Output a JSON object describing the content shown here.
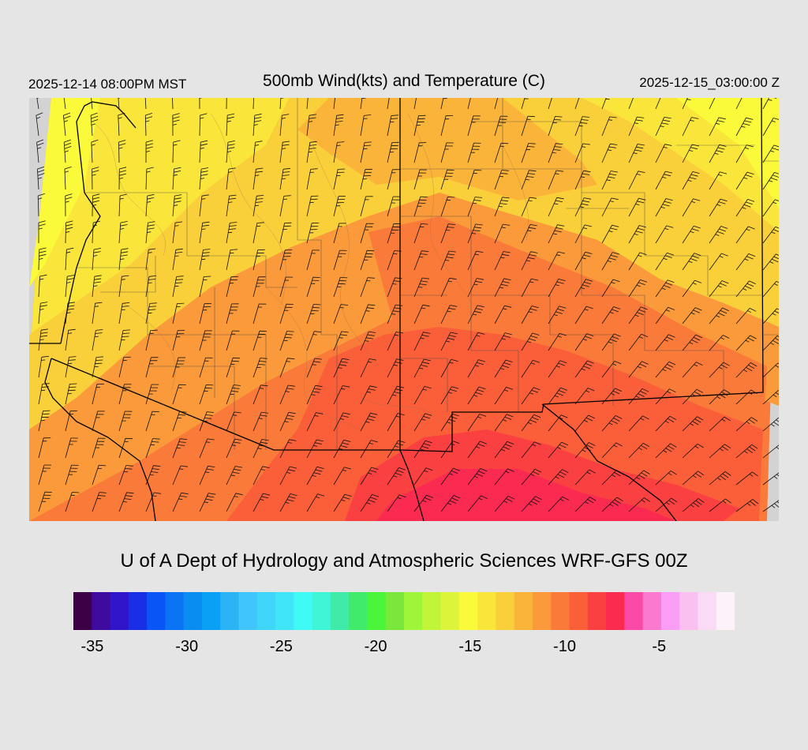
{
  "header": {
    "local_time": "2025-12-14 08:00PM MST",
    "title": "500mb Wind(kts) and Temperature (C)",
    "utc_time": "2025-12-15_03:00:00 Z"
  },
  "footer": {
    "credit": "U of A Dept of Hydrology and Atmospheric Sciences WRF-GFS 00Z"
  },
  "colorbar": {
    "colors": [
      "#3d0047",
      "#3f0a9e",
      "#3015c9",
      "#1a2ee6",
      "#0a55f5",
      "#0a74f5",
      "#0a8df0",
      "#0aa0f5",
      "#2ab4f5",
      "#40c6fa",
      "#40d6fa",
      "#40e5fa",
      "#40faf5",
      "#40f5d6",
      "#40eaa8",
      "#40ea6a",
      "#4af53a",
      "#7ae83a",
      "#9ef53a",
      "#c1f53a",
      "#dcf53a",
      "#fafa3a",
      "#fae63a",
      "#fad03a",
      "#fab43a",
      "#fa9a3a",
      "#fa7a3a",
      "#fa5f3a",
      "#fa4040",
      "#fa2a50",
      "#fa4aa5",
      "#fa7ad0",
      "#fa9ef5",
      "#fac0f0",
      "#fadaf5",
      "#fdf2fa"
    ],
    "ticks": [
      {
        "label": "-35",
        "value": -35
      },
      {
        "label": "-30",
        "value": -30
      },
      {
        "label": "-25",
        "value": -25
      },
      {
        "label": "-20",
        "value": -20
      },
      {
        "label": "-15",
        "value": -15
      },
      {
        "label": "-10",
        "value": -10
      },
      {
        "label": "-5",
        "value": -5
      }
    ],
    "min": -36,
    "max": -1
  },
  "map": {
    "no_data_color": "#d3d3d3",
    "band_colors": [
      "#fafa3a",
      "#fae63a",
      "#fad03a",
      "#fab43a",
      "#fa9a3a",
      "#fa7a3a",
      "#fa5f3a",
      "#fa4040"
    ]
  }
}
